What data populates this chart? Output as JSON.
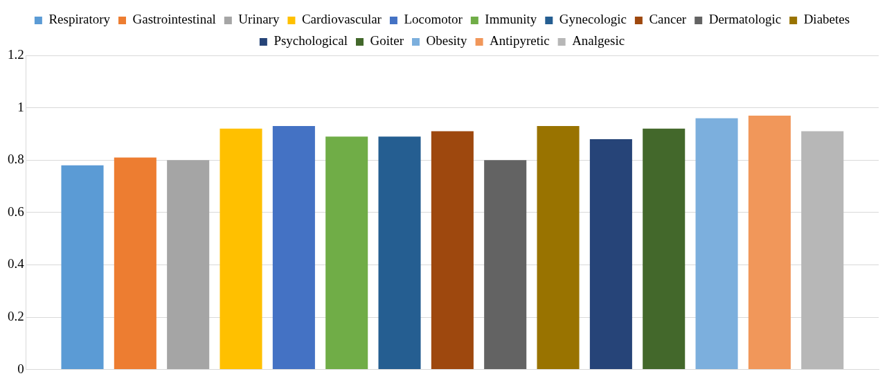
{
  "chart_data": {
    "type": "bar",
    "categories": [
      null
    ],
    "series": [
      {
        "name": "Respiratory",
        "color": "#5b9bd5",
        "values": [
          0.78
        ]
      },
      {
        "name": "Gastrointestinal",
        "color": "#ed7d31",
        "values": [
          0.81
        ]
      },
      {
        "name": "Urinary",
        "color": "#a5a5a5",
        "values": [
          0.8
        ]
      },
      {
        "name": "Cardiovascular",
        "color": "#ffc000",
        "values": [
          0.92
        ]
      },
      {
        "name": "Locomotor",
        "color": "#4472c4",
        "values": [
          0.93
        ]
      },
      {
        "name": "Immunity",
        "color": "#70ad47",
        "values": [
          0.89
        ]
      },
      {
        "name": "Gynecologic",
        "color": "#255e91",
        "values": [
          0.89
        ]
      },
      {
        "name": "Cancer",
        "color": "#9e480e",
        "values": [
          0.91
        ]
      },
      {
        "name": "Dermatologic",
        "color": "#636363",
        "values": [
          0.8
        ]
      },
      {
        "name": "Diabetes",
        "color": "#997300",
        "values": [
          0.93
        ]
      },
      {
        "name": "Psychological",
        "color": "#264478",
        "values": [
          0.88
        ]
      },
      {
        "name": "Goiter",
        "color": "#43682b",
        "values": [
          0.92
        ]
      },
      {
        "name": "Obesity",
        "color": "#7cafdd",
        "values": [
          0.96
        ]
      },
      {
        "name": "Antipyretic",
        "color": "#f1975a",
        "values": [
          0.97
        ]
      },
      {
        "name": "Analgesic",
        "color": "#b7b7b7",
        "values": [
          0.91
        ]
      }
    ],
    "ylim": [
      0,
      1.2
    ],
    "yticks": [
      0,
      0.2,
      0.4,
      0.6,
      0.8,
      1,
      1.2
    ],
    "grid": "y",
    "legend": "top"
  }
}
